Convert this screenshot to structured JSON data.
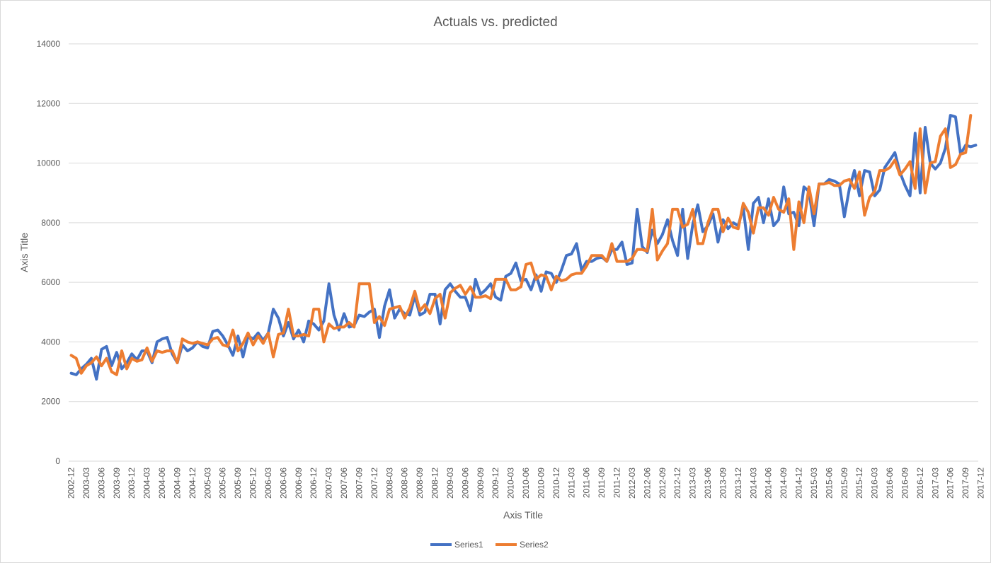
{
  "chart_data": {
    "type": "line",
    "title": "Actuals vs. predicted",
    "xlabel": "Axis Title",
    "ylabel": "Axis Title",
    "ylim": [
      0,
      14000
    ],
    "y_ticks": [
      0,
      2000,
      4000,
      6000,
      8000,
      10000,
      12000,
      14000
    ],
    "grid": true,
    "legend_position": "bottom",
    "x_start": "2002-12",
    "x_tick_labels": [
      "2002-12",
      "2003-03",
      "2003-06",
      "2003-09",
      "2003-12",
      "2004-03",
      "2004-06",
      "2004-09",
      "2004-12",
      "2005-03",
      "2005-06",
      "2005-09",
      "2005-12",
      "2006-03",
      "2006-06",
      "2006-09",
      "2006-12",
      "2007-03",
      "2007-06",
      "2007-09",
      "2007-12",
      "2008-03",
      "2008-06",
      "2008-09",
      "2008-12",
      "2009-03",
      "2009-06",
      "2009-09",
      "2009-12",
      "2010-03",
      "2010-06",
      "2010-09",
      "2010-12",
      "2011-03",
      "2011-06",
      "2011-09",
      "2011-12",
      "2012-03",
      "2012-06",
      "2012-09",
      "2012-12",
      "2013-03",
      "2013-06",
      "2013-09",
      "2013-12",
      "2014-03",
      "2014-06",
      "2014-09",
      "2014-12",
      "2015-03",
      "2015-06",
      "2015-09",
      "2015-12",
      "2016-03",
      "2016-06",
      "2016-09",
      "2016-12",
      "2017-03",
      "2017-06",
      "2017-09",
      "2017-12"
    ],
    "series": [
      {
        "name": "Series1",
        "color": "#4472c4",
        "values": [
          2950,
          2900,
          3100,
          3250,
          3450,
          2750,
          3750,
          3850,
          3200,
          3650,
          3100,
          3300,
          3600,
          3400,
          3700,
          3700,
          3300,
          4000,
          4100,
          4150,
          3600,
          3300,
          3900,
          3700,
          3800,
          4000,
          3850,
          3800,
          4350,
          4400,
          4200,
          3900,
          3550,
          4200,
          3500,
          4200,
          4100,
          4300,
          4050,
          4300,
          5100,
          4800,
          4200,
          4650,
          4100,
          4400,
          4000,
          4700,
          4600,
          4400,
          4700,
          5950,
          4900,
          4400,
          4950,
          4500,
          4550,
          4900,
          4850,
          5000,
          5100,
          4150,
          5200,
          5750,
          4800,
          5100,
          4950,
          4900,
          5550,
          4900,
          5000,
          5600,
          5600,
          4600,
          5750,
          5950,
          5700,
          5500,
          5500,
          5050,
          6100,
          5600,
          5750,
          5950,
          5500,
          5400,
          6200,
          6300,
          6650,
          6050,
          6100,
          5750,
          6250,
          5700,
          6350,
          6300,
          6000,
          6400,
          6900,
          6950,
          7300,
          6400,
          6700,
          6700,
          6800,
          6850,
          6700,
          7100,
          7100,
          7350,
          6600,
          6650,
          8450,
          7200,
          7000,
          7750,
          7300,
          7600,
          8100,
          7400,
          6900,
          8450,
          6800,
          7950,
          8600,
          7700,
          7900,
          8300,
          7350,
          8100,
          7800,
          8000,
          7900,
          8500,
          7100,
          8650,
          8850,
          8000,
          8800,
          7900,
          8100,
          9200,
          8300,
          8350,
          7900,
          9200,
          9050,
          7900,
          9300,
          9300,
          9450,
          9400,
          9300,
          8200,
          9150,
          9750,
          8900,
          9750,
          9700,
          8900,
          9100,
          9850,
          10100,
          10350,
          9700,
          9250,
          8900,
          11000,
          9000,
          11200,
          10000,
          9800,
          10000,
          10500,
          11600,
          11550,
          10300,
          10600,
          10550,
          10600
        ]
      },
      {
        "name": "Series2",
        "color": "#ed7d31",
        "values": [
          3550,
          3450,
          2950,
          3200,
          3300,
          3500,
          3200,
          3450,
          3000,
          2900,
          3700,
          3100,
          3450,
          3350,
          3400,
          3800,
          3350,
          3700,
          3650,
          3700,
          3700,
          3300,
          4100,
          4000,
          3950,
          4000,
          3950,
          3900,
          4100,
          4150,
          3900,
          3850,
          4400,
          3700,
          3950,
          4300,
          3900,
          4200,
          3950,
          4300,
          3500,
          4250,
          4300,
          5100,
          4200,
          4200,
          4250,
          4200,
          5100,
          5100,
          4000,
          4600,
          4450,
          4500,
          4500,
          4650,
          4500,
          5950,
          5950,
          5950,
          4650,
          4850,
          4550,
          5100,
          5150,
          5200,
          4800,
          5150,
          5700,
          5050,
          5250,
          4950,
          5450,
          5600,
          4800,
          5650,
          5800,
          5900,
          5600,
          5850,
          5500,
          5500,
          5550,
          5450,
          6100,
          6100,
          6100,
          5750,
          5750,
          5850,
          6600,
          6650,
          6100,
          6250,
          6200,
          5750,
          6200,
          6050,
          6100,
          6250,
          6300,
          6300,
          6550,
          6900,
          6900,
          6900,
          6700,
          7300,
          6700,
          6700,
          6700,
          6800,
          7100,
          7100,
          7050,
          8450,
          6750,
          7050,
          7300,
          8450,
          8450,
          7850,
          7950,
          8450,
          7300,
          7300,
          8000,
          8450,
          8450,
          7700,
          8150,
          7850,
          7800,
          8650,
          8350,
          7650,
          8500,
          8500,
          8250,
          8850,
          8450,
          8350,
          8800,
          7100,
          8700,
          8000,
          9200,
          8300,
          9300,
          9300,
          9350,
          9250,
          9250,
          9400,
          9450,
          9150,
          9700,
          8250,
          8850,
          9050,
          9750,
          9750,
          9850,
          10100,
          9600,
          9800,
          10050,
          9150,
          11150,
          9000,
          10000,
          10050,
          10900,
          11150,
          9850,
          9950,
          10300,
          10350,
          11600
        ]
      }
    ]
  }
}
